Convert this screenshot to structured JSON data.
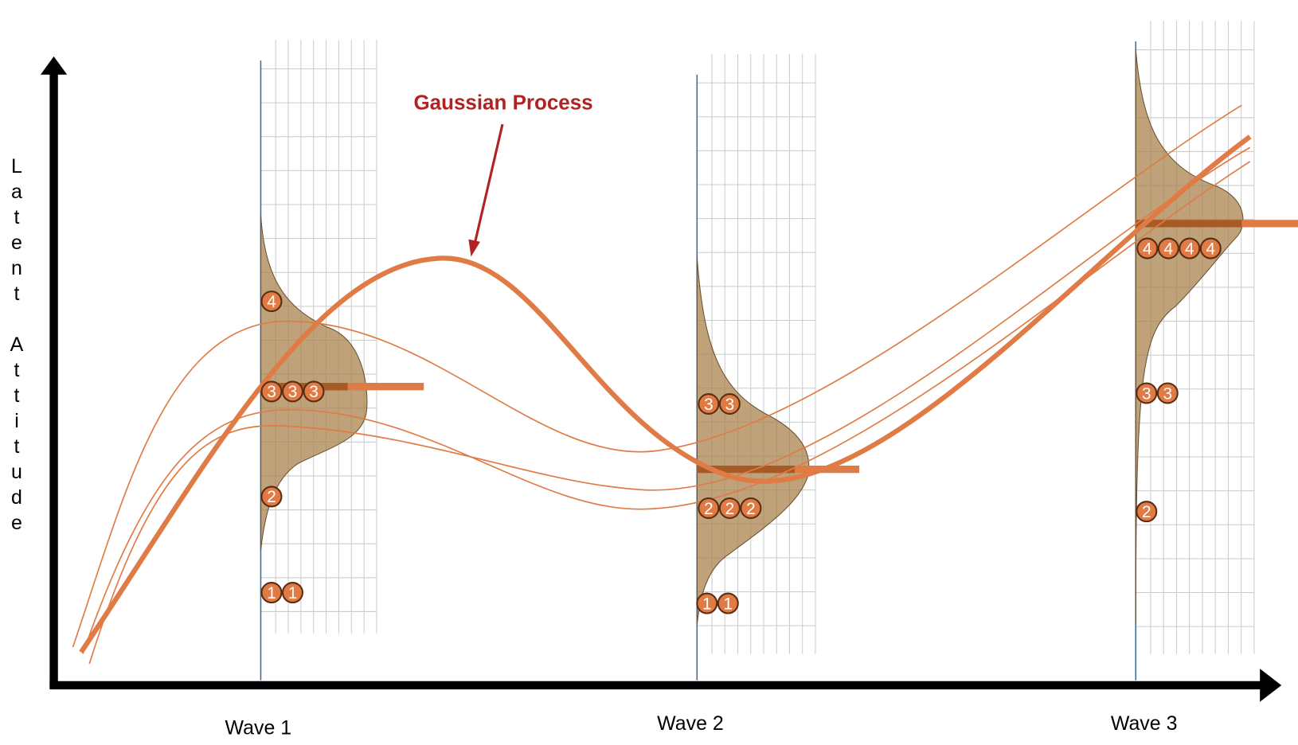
{
  "title": "Gaussian Process",
  "y_axis_label": "Latent Attitude",
  "waves": [
    {
      "label": "Wave 1",
      "groups": [
        [
          "4"
        ],
        [
          "3",
          "3",
          "3"
        ],
        [
          "2"
        ],
        [
          "1",
          "1"
        ]
      ]
    },
    {
      "label": "Wave 2",
      "groups": [
        [
          "3",
          "3"
        ],
        [
          "2",
          "2",
          "2"
        ],
        [
          "1",
          "1"
        ]
      ]
    },
    {
      "label": "Wave 3",
      "groups": [
        [
          "4",
          "4",
          "4",
          "4"
        ],
        [
          "3",
          "3"
        ],
        [
          "2"
        ]
      ]
    }
  ]
}
